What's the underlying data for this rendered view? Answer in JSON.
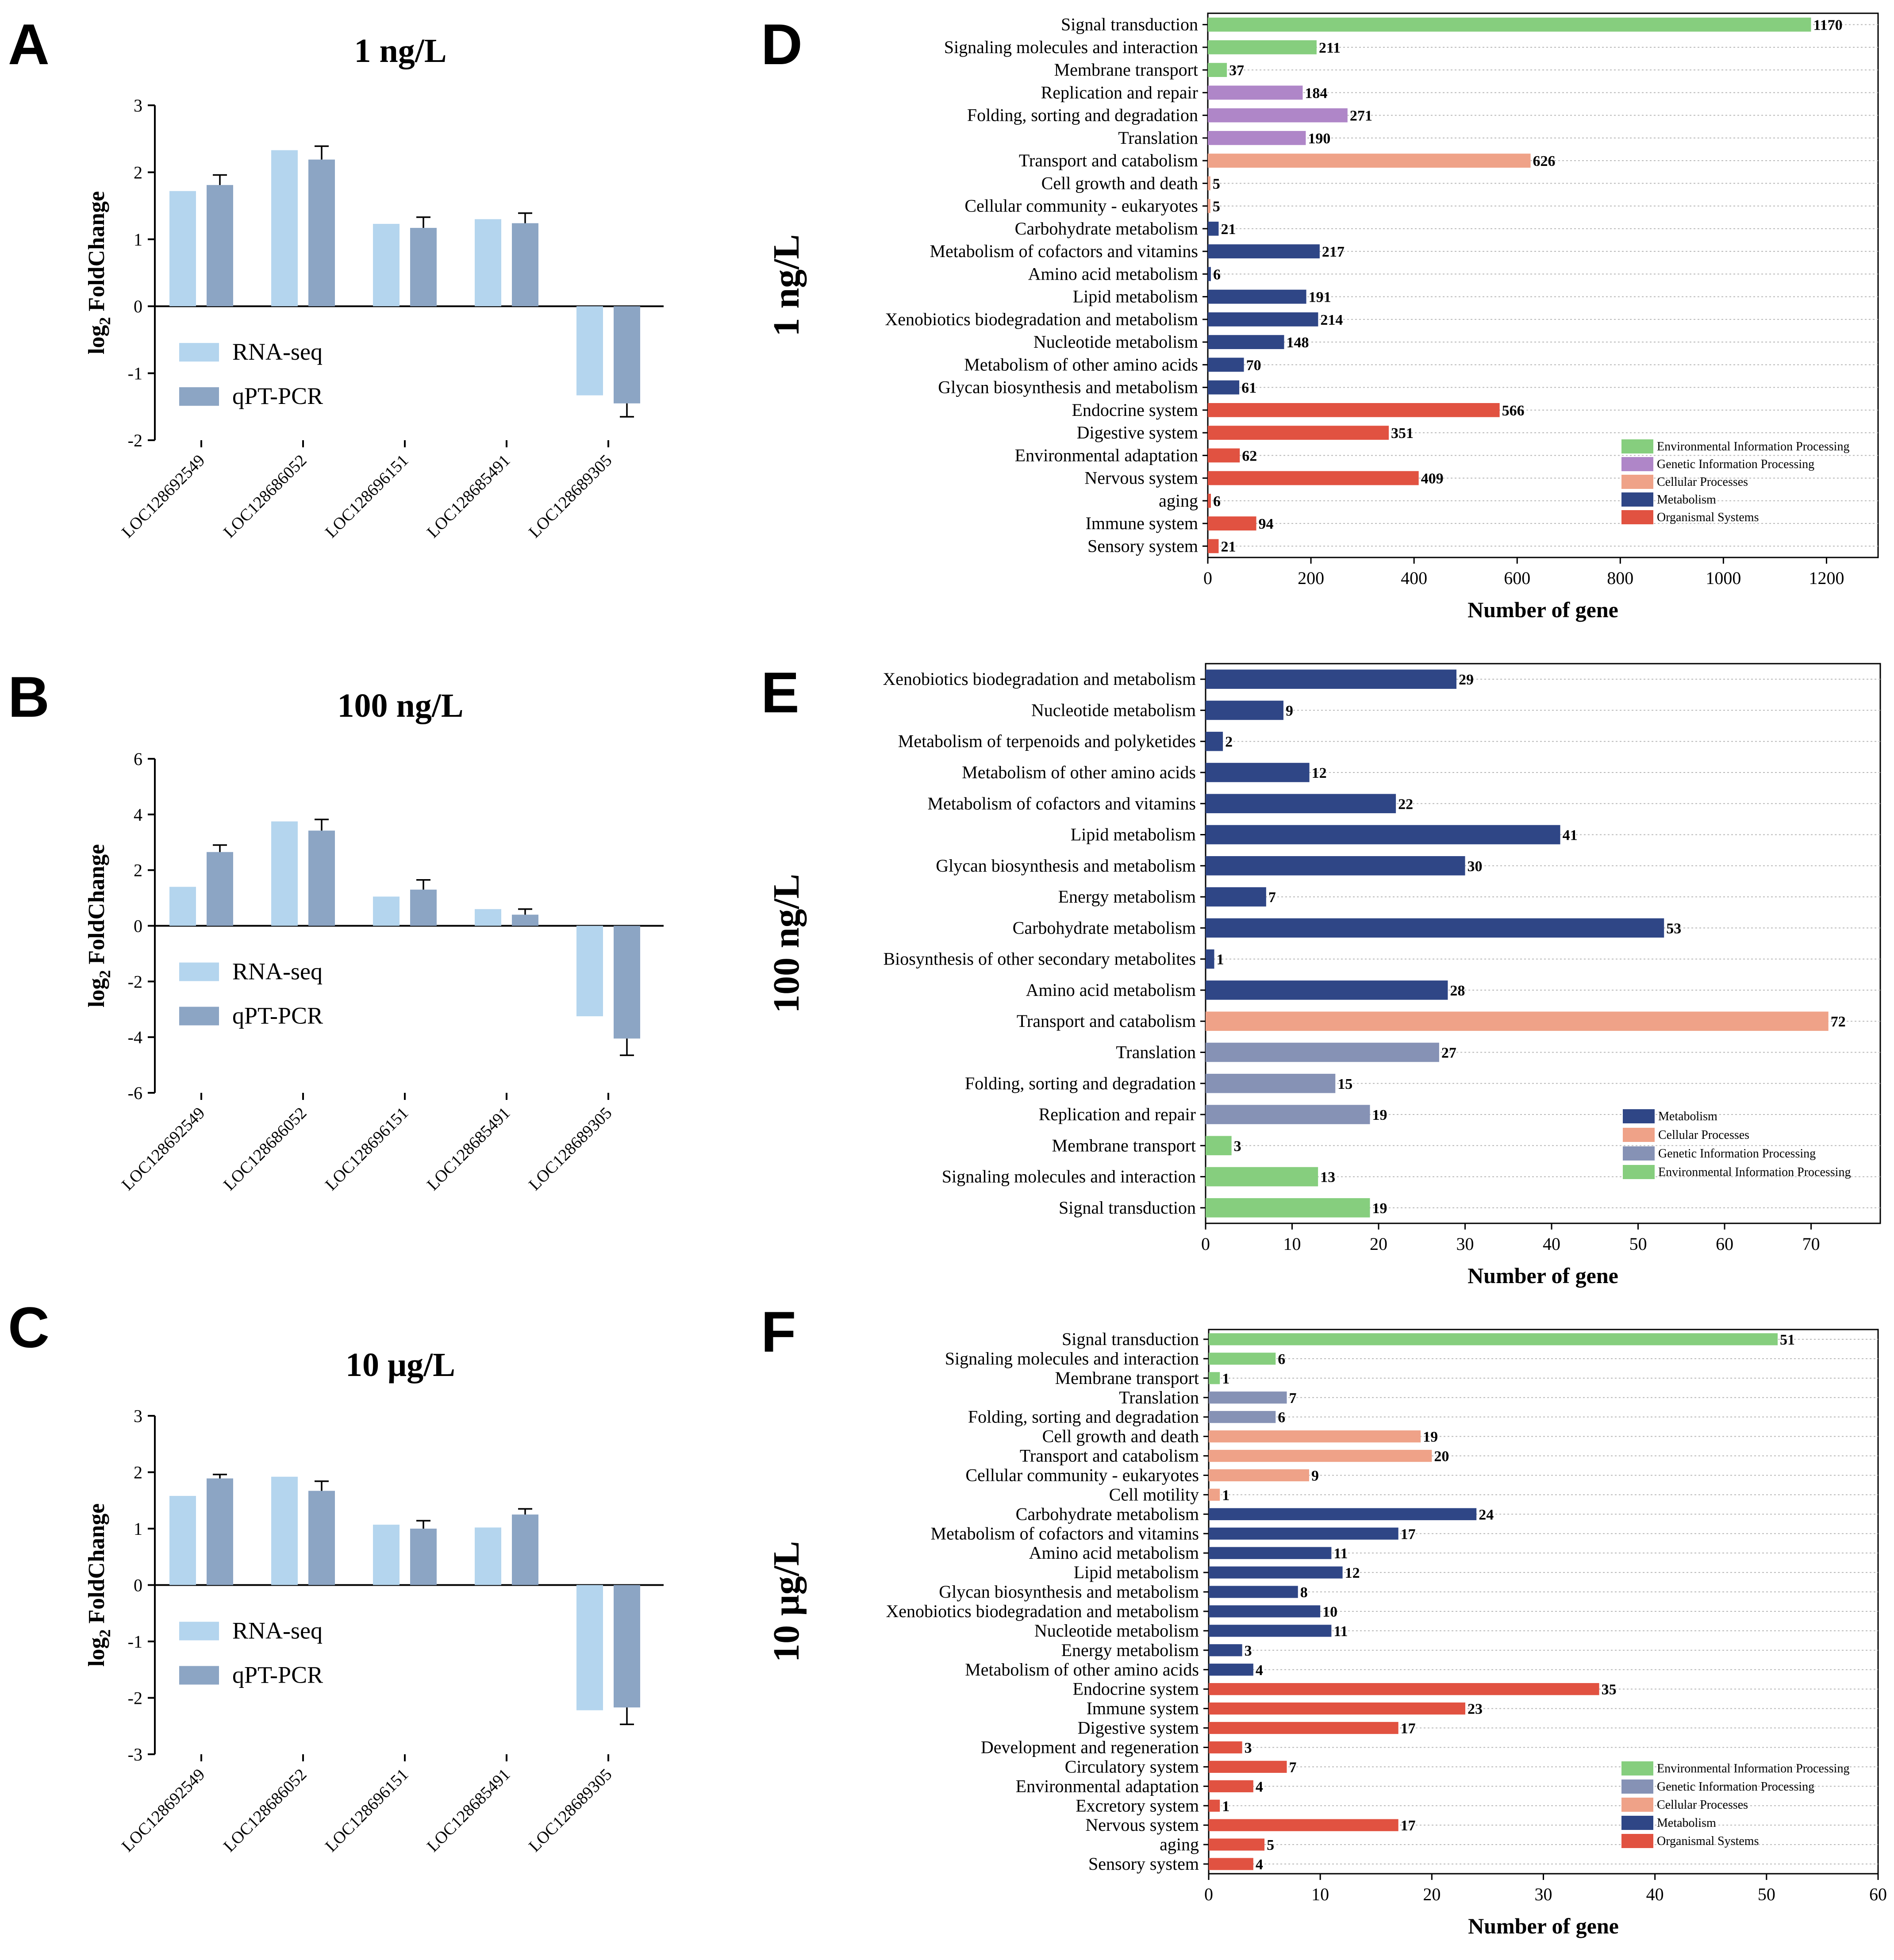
{
  "colors": {
    "rnaseq": "#B4D5EE",
    "qpcr": "#8CA5C4",
    "env": "#86CE7E",
    "genetic_D": "#AF86C8",
    "genetic_EF": "#8692B5",
    "cellular": "#EFA288",
    "metabolism": "#2F4686",
    "organismal": "#E15241"
  },
  "legend_series": [
    "RNA-seq",
    "qPT-PCR"
  ],
  "chart_data": [
    {
      "panel": "A",
      "type": "bar",
      "title": "1 ng/L",
      "ylabel": "log2 FoldChange",
      "ylim": [
        -2,
        3
      ],
      "yticks": [
        "3",
        "2",
        "1",
        "0",
        "-1",
        "-2"
      ],
      "categories": [
        "LOC128692549",
        "LOC128686052",
        "LOC128696151",
        "LOC128685491",
        "LOC128689305"
      ],
      "series": [
        {
          "name": "RNA-seq",
          "values": [
            1.72,
            2.33,
            1.23,
            1.3,
            -1.33
          ]
        },
        {
          "name": "qPT-PCR",
          "values": [
            1.81,
            2.19,
            1.17,
            1.24,
            -1.45
          ],
          "errors": [
            0.15,
            0.2,
            0.16,
            0.15,
            0.2
          ]
        }
      ]
    },
    {
      "panel": "B",
      "type": "bar",
      "title": "100 ng/L",
      "ylabel": "log2 FoldChange",
      "ylim": [
        -6,
        6
      ],
      "yticks": [
        "6",
        "4",
        "2",
        "0",
        "-2",
        "-4",
        "-6"
      ],
      "categories": [
        "LOC128692549",
        "LOC128686052",
        "LOC128696151",
        "LOC128685491",
        "LOC128689305"
      ],
      "series": [
        {
          "name": "RNA-seq",
          "values": [
            1.4,
            3.75,
            1.05,
            0.6,
            -3.25
          ]
        },
        {
          "name": "qPT-PCR",
          "values": [
            2.65,
            3.42,
            1.3,
            0.4,
            -4.05
          ],
          "errors": [
            0.25,
            0.4,
            0.35,
            0.2,
            0.6
          ]
        }
      ]
    },
    {
      "panel": "C",
      "type": "bar",
      "title": "10 μg/L",
      "ylabel": "log2 FoldChange",
      "ylim": [
        -3,
        3
      ],
      "yticks": [
        "3",
        "2",
        "1",
        "0",
        "-1",
        "-2",
        "-3"
      ],
      "categories": [
        "LOC128692549",
        "LOC128686052",
        "LOC128696151",
        "LOC128685491",
        "LOC128689305"
      ],
      "series": [
        {
          "name": "RNA-seq",
          "values": [
            1.58,
            1.92,
            1.07,
            1.02,
            -2.22
          ]
        },
        {
          "name": "qPT-PCR",
          "values": [
            1.89,
            1.67,
            1.0,
            1.25,
            -2.17
          ],
          "errors": [
            0.07,
            0.17,
            0.14,
            0.1,
            0.3
          ]
        }
      ]
    },
    {
      "panel": "D",
      "type": "hbar",
      "side_label": "1 ng/L",
      "xlabel": "Number of gene",
      "xlim": [
        0,
        1300
      ],
      "xticks": [
        0,
        200,
        400,
        600,
        800,
        1000,
        1200
      ],
      "legend": [
        {
          "label": "Environmental Information Processing",
          "group": "env"
        },
        {
          "label": "Genetic Information Processing",
          "group": "genetic_D"
        },
        {
          "label": "Cellular Processes",
          "group": "cellular"
        },
        {
          "label": "Metabolism",
          "group": "metabolism"
        },
        {
          "label": "Organismal Systems",
          "group": "organismal"
        }
      ],
      "bars": [
        {
          "label": "Signal transduction",
          "value": 1170,
          "group": "env"
        },
        {
          "label": "Signaling molecules and interaction",
          "value": 211,
          "group": "env"
        },
        {
          "label": "Membrane transport",
          "value": 37,
          "group": "env"
        },
        {
          "label": "Replication and repair",
          "value": 184,
          "group": "genetic_D"
        },
        {
          "label": "Folding, sorting and degradation",
          "value": 271,
          "group": "genetic_D"
        },
        {
          "label": "Translation",
          "value": 190,
          "group": "genetic_D"
        },
        {
          "label": "Transport and catabolism",
          "value": 626,
          "group": "cellular"
        },
        {
          "label": "Cell growth and death",
          "value": 5,
          "group": "cellular"
        },
        {
          "label": "Cellular community - eukaryotes",
          "value": 5,
          "group": "cellular"
        },
        {
          "label": "Carbohydrate metabolism",
          "value": 21,
          "group": "metabolism"
        },
        {
          "label": "Metabolism of cofactors and vitamins",
          "value": 217,
          "group": "metabolism"
        },
        {
          "label": "Amino acid metabolism",
          "value": 6,
          "group": "metabolism"
        },
        {
          "label": "Lipid metabolism",
          "value": 191,
          "group": "metabolism"
        },
        {
          "label": "Xenobiotics biodegradation and metabolism",
          "value": 214,
          "group": "metabolism"
        },
        {
          "label": "Nucleotide metabolism",
          "value": 148,
          "group": "metabolism"
        },
        {
          "label": "Metabolism of other amino acids",
          "value": 70,
          "group": "metabolism"
        },
        {
          "label": "Glycan biosynthesis and metabolism",
          "value": 61,
          "group": "metabolism"
        },
        {
          "label": "Endocrine system",
          "value": 566,
          "group": "organismal"
        },
        {
          "label": "Digestive system",
          "value": 351,
          "group": "organismal"
        },
        {
          "label": "Environmental adaptation",
          "value": 62,
          "group": "organismal"
        },
        {
          "label": "Nervous system",
          "value": 409,
          "group": "organismal"
        },
        {
          "label": "aging",
          "value": 6,
          "group": "organismal"
        },
        {
          "label": "Immune system",
          "value": 94,
          "group": "organismal"
        },
        {
          "label": "Sensory system",
          "value": 21,
          "group": "organismal"
        }
      ]
    },
    {
      "panel": "E",
      "type": "hbar",
      "side_label": "100 ng/L",
      "xlabel": "Number of gene",
      "xlim": [
        0,
        78
      ],
      "xticks": [
        0,
        10,
        20,
        30,
        40,
        50,
        60,
        70
      ],
      "legend": [
        {
          "label": "Metabolism",
          "group": "metabolism"
        },
        {
          "label": "Cellular Processes",
          "group": "cellular"
        },
        {
          "label": "Genetic Information Processing",
          "group": "genetic_EF"
        },
        {
          "label": "Environmental Information Processing",
          "group": "env"
        }
      ],
      "bars": [
        {
          "label": "Xenobiotics biodegradation and metabolism",
          "value": 29,
          "group": "metabolism"
        },
        {
          "label": "Nucleotide metabolism",
          "value": 9,
          "group": "metabolism"
        },
        {
          "label": "Metabolism of terpenoids and polyketides",
          "value": 2,
          "group": "metabolism"
        },
        {
          "label": "Metabolism of other amino acids",
          "value": 12,
          "group": "metabolism"
        },
        {
          "label": "Metabolism of cofactors and vitamins",
          "value": 22,
          "group": "metabolism"
        },
        {
          "label": "Lipid metabolism",
          "value": 41,
          "group": "metabolism"
        },
        {
          "label": "Glycan biosynthesis and metabolism",
          "value": 30,
          "group": "metabolism"
        },
        {
          "label": "Energy metabolism",
          "value": 7,
          "group": "metabolism"
        },
        {
          "label": "Carbohydrate metabolism",
          "value": 53,
          "group": "metabolism"
        },
        {
          "label": "Biosynthesis of other secondary metabolites",
          "value": 1,
          "group": "metabolism"
        },
        {
          "label": "Amino acid metabolism",
          "value": 28,
          "group": "metabolism"
        },
        {
          "label": "Transport and catabolism",
          "value": 72,
          "group": "cellular"
        },
        {
          "label": "Translation",
          "value": 27,
          "group": "genetic_EF"
        },
        {
          "label": "Folding, sorting and degradation",
          "value": 15,
          "group": "genetic_EF"
        },
        {
          "label": "Replication and repair",
          "value": 19,
          "group": "genetic_EF"
        },
        {
          "label": "Membrane transport",
          "value": 3,
          "group": "env"
        },
        {
          "label": "Signaling molecules and interaction",
          "value": 13,
          "group": "env"
        },
        {
          "label": "Signal transduction",
          "value": 19,
          "group": "env"
        }
      ]
    },
    {
      "panel": "F",
      "type": "hbar",
      "side_label": "10 μg/L",
      "xlabel": "Number of gene",
      "xlim": [
        0,
        60
      ],
      "xticks": [
        0,
        10,
        20,
        30,
        40,
        50,
        60
      ],
      "legend": [
        {
          "label": "Environmental Information Processing",
          "group": "env"
        },
        {
          "label": "Genetic Information Processing",
          "group": "genetic_EF"
        },
        {
          "label": "Cellular Processes",
          "group": "cellular"
        },
        {
          "label": "Metabolism",
          "group": "metabolism"
        },
        {
          "label": "Organismal Systems",
          "group": "organismal"
        }
      ],
      "bars": [
        {
          "label": "Signal transduction",
          "value": 51,
          "group": "env"
        },
        {
          "label": "Signaling molecules and interaction",
          "value": 6,
          "group": "env"
        },
        {
          "label": "Membrane transport",
          "value": 1,
          "group": "env"
        },
        {
          "label": "Translation",
          "value": 7,
          "group": "genetic_EF"
        },
        {
          "label": "Folding, sorting and degradation",
          "value": 6,
          "group": "genetic_EF"
        },
        {
          "label": "Cell growth and death",
          "value": 19,
          "group": "cellular"
        },
        {
          "label": "Transport and catabolism",
          "value": 20,
          "group": "cellular"
        },
        {
          "label": "Cellular community - eukaryotes",
          "value": 9,
          "group": "cellular"
        },
        {
          "label": "Cell motility",
          "value": 1,
          "group": "cellular"
        },
        {
          "label": "Carbohydrate metabolism",
          "value": 24,
          "group": "metabolism"
        },
        {
          "label": "Metabolism of cofactors and vitamins",
          "value": 17,
          "group": "metabolism"
        },
        {
          "label": "Amino acid metabolism",
          "value": 11,
          "group": "metabolism"
        },
        {
          "label": "Lipid metabolism",
          "value": 12,
          "group": "metabolism"
        },
        {
          "label": "Glycan biosynthesis and metabolism",
          "value": 8,
          "group": "metabolism"
        },
        {
          "label": "Xenobiotics biodegradation and metabolism",
          "value": 10,
          "group": "metabolism"
        },
        {
          "label": "Nucleotide metabolism",
          "value": 11,
          "group": "metabolism"
        },
        {
          "label": "Energy metabolism",
          "value": 3,
          "group": "metabolism"
        },
        {
          "label": "Metabolism of other amino acids",
          "value": 4,
          "group": "metabolism"
        },
        {
          "label": "Endocrine system",
          "value": 35,
          "group": "organismal"
        },
        {
          "label": "Immune system",
          "value": 23,
          "group": "organismal"
        },
        {
          "label": "Digestive system",
          "value": 17,
          "group": "organismal"
        },
        {
          "label": "Development and regeneration",
          "value": 3,
          "group": "organismal"
        },
        {
          "label": "Circulatory system",
          "value": 7,
          "group": "organismal"
        },
        {
          "label": "Environmental adaptation",
          "value": 4,
          "group": "organismal"
        },
        {
          "label": "Excretory system",
          "value": 1,
          "group": "organismal"
        },
        {
          "label": "Nervous system",
          "value": 17,
          "group": "organismal"
        },
        {
          "label": "aging",
          "value": 5,
          "group": "organismal"
        },
        {
          "label": "Sensory system",
          "value": 4,
          "group": "organismal"
        }
      ]
    }
  ]
}
